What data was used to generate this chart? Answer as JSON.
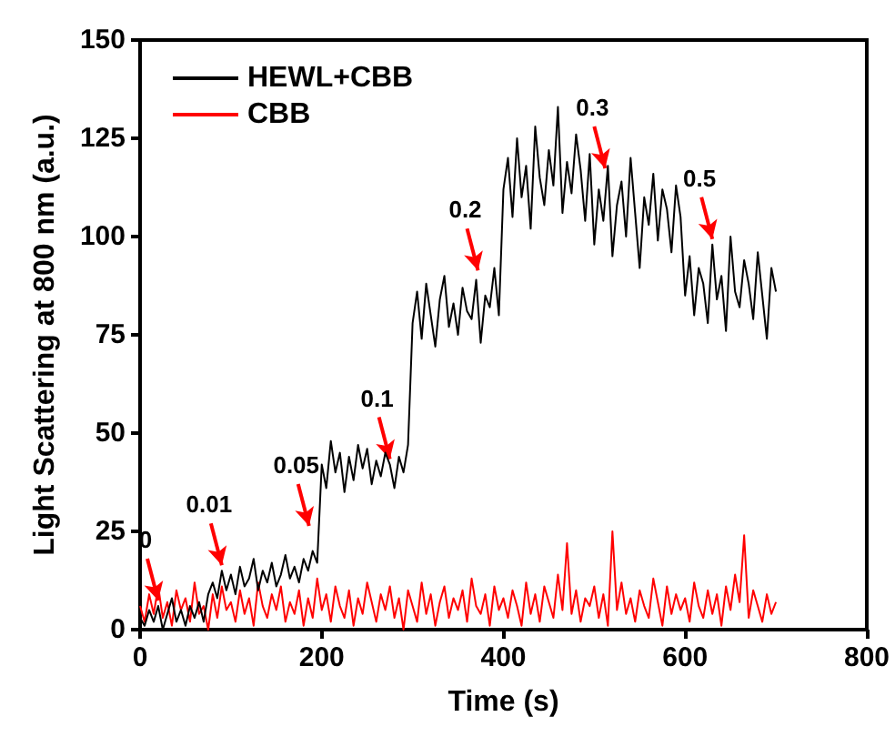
{
  "chart_data": {
    "type": "line",
    "xlabel": "Time (s)",
    "ylabel": "Light Scattering at 800 nm (a.u.)",
    "xlim": [
      0,
      800
    ],
    "xticks": [
      0,
      200,
      400,
      600,
      800
    ],
    "ylim": [
      0,
      150
    ],
    "yticks": [
      0,
      25,
      50,
      75,
      100,
      125,
      150
    ],
    "grid": false,
    "legend": "top left",
    "marker": "none",
    "line_style": "solid",
    "x": [
      0,
      5,
      10,
      15,
      20,
      25,
      30,
      35,
      40,
      45,
      50,
      55,
      60,
      65,
      70,
      75,
      80,
      85,
      90,
      95,
      100,
      105,
      110,
      115,
      120,
      125,
      130,
      135,
      140,
      145,
      150,
      155,
      160,
      165,
      170,
      175,
      180,
      185,
      190,
      195,
      200,
      205,
      210,
      215,
      220,
      225,
      230,
      235,
      240,
      245,
      250,
      255,
      260,
      265,
      270,
      275,
      280,
      285,
      290,
      295,
      300,
      305,
      310,
      315,
      320,
      325,
      330,
      335,
      340,
      345,
      350,
      355,
      360,
      365,
      370,
      375,
      380,
      385,
      390,
      395,
      400,
      405,
      410,
      415,
      420,
      425,
      430,
      435,
      440,
      445,
      450,
      455,
      460,
      465,
      470,
      475,
      480,
      485,
      490,
      495,
      500,
      505,
      510,
      515,
      520,
      525,
      530,
      535,
      540,
      545,
      550,
      555,
      560,
      565,
      570,
      575,
      580,
      585,
      590,
      595,
      600,
      605,
      610,
      615,
      620,
      625,
      630,
      635,
      640,
      645,
      650,
      655,
      660,
      665,
      670,
      675,
      680,
      685,
      690,
      695,
      700
    ],
    "series": [
      {
        "name": "HEWL+CBB",
        "color": "#000000",
        "values": [
          3,
          1,
          5,
          2,
          6,
          0,
          4,
          8,
          2,
          5,
          1,
          6,
          3,
          7,
          2,
          9,
          12,
          8,
          15,
          10,
          14,
          9,
          16,
          11,
          13,
          18,
          10,
          15,
          12,
          17,
          11,
          14,
          19,
          13,
          16,
          12,
          18,
          15,
          20,
          17,
          42,
          36,
          48,
          40,
          45,
          35,
          44,
          38,
          47,
          41,
          46,
          37,
          43,
          39,
          45,
          42,
          36,
          44,
          40,
          47,
          78,
          86,
          74,
          88,
          80,
          72,
          84,
          90,
          77,
          83,
          75,
          87,
          81,
          79,
          89,
          73,
          85,
          82,
          92,
          80,
          112,
          120,
          105,
          125,
          110,
          118,
          102,
          128,
          115,
          108,
          122,
          113,
          133,
          106,
          119,
          111,
          126,
          117,
          104,
          121,
          98,
          112,
          104,
          118,
          95,
          108,
          114,
          100,
          120,
          106,
          92,
          110,
          103,
          116,
          99,
          112,
          107,
          96,
          113,
          105,
          85,
          95,
          80,
          92,
          88,
          78,
          98,
          84,
          90,
          76,
          100,
          86,
          82,
          94,
          88,
          79,
          96,
          85,
          74,
          92,
          86
        ]
      },
      {
        "name": "CBB",
        "color": "#ff0000",
        "values": [
          6,
          2,
          9,
          4,
          11,
          3,
          7,
          1,
          10,
          5,
          8,
          2,
          12,
          4,
          6,
          0,
          9,
          3,
          11,
          5,
          7,
          2,
          10,
          4,
          8,
          1,
          12,
          6,
          3,
          9,
          5,
          11,
          2,
          7,
          4,
          10,
          1,
          8,
          3,
          13,
          5,
          9,
          2,
          11,
          6,
          3,
          10,
          1,
          8,
          4,
          12,
          7,
          2,
          9,
          5,
          11,
          3,
          8,
          0,
          10,
          6,
          2,
          12,
          4,
          9,
          1,
          7,
          11,
          3,
          8,
          5,
          10,
          2,
          13,
          6,
          4,
          9,
          1,
          11,
          5,
          8,
          3,
          10,
          6,
          1,
          12,
          4,
          9,
          2,
          11,
          7,
          3,
          14,
          5,
          22,
          4,
          10,
          2,
          8,
          6,
          11,
          3,
          9,
          1,
          25,
          5,
          12,
          4,
          8,
          2,
          10,
          6,
          3,
          13,
          7,
          1,
          11,
          4,
          9,
          5,
          8,
          2,
          12,
          6,
          3,
          10,
          4,
          9,
          1,
          11,
          5,
          14,
          7,
          24,
          3,
          10,
          6,
          2,
          9,
          4,
          7
        ]
      }
    ],
    "annotations": [
      {
        "text": "0",
        "x": 20,
        "y": 6
      },
      {
        "text": "0.01",
        "x": 90,
        "y": 15
      },
      {
        "text": "0.05",
        "x": 186,
        "y": 25
      },
      {
        "text": "0.1",
        "x": 275,
        "y": 42
      },
      {
        "text": "0.2",
        "x": 372,
        "y": 90
      },
      {
        "text": "0.3",
        "x": 512,
        "y": 116
      },
      {
        "text": "0.5",
        "x": 630,
        "y": 98
      }
    ]
  }
}
